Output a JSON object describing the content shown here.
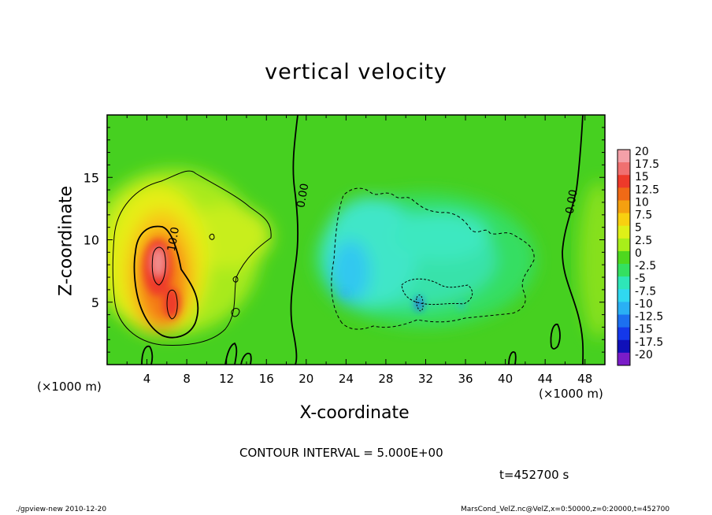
{
  "chart_data": {
    "type": "heatmap",
    "title": "vertical velocity",
    "xlabel": "X-coordinate",
    "ylabel": "Z-coordinate",
    "x_unit_left": "(×1000 m)",
    "x_unit_right": "(×1000 m)",
    "xlim": [
      0,
      50
    ],
    "ylim": [
      0,
      20
    ],
    "x_ticks": [
      4,
      8,
      12,
      16,
      20,
      24,
      28,
      32,
      36,
      40,
      44,
      48
    ],
    "y_ticks": [
      5,
      10,
      15
    ],
    "colorbar": {
      "labels": [
        "20",
        "17.5",
        "15",
        "12.5",
        "10",
        "7.5",
        "5",
        "2.5",
        "0",
        "-2.5",
        "-5",
        "-7.5",
        "-10",
        "-12.5",
        "-15",
        "-17.5",
        "-20"
      ],
      "colors": [
        "#f4a0a8",
        "#f07070",
        "#ee3a2a",
        "#f06a16",
        "#f5a010",
        "#f8d010",
        "#dff018",
        "#a8ee1a",
        "#4ed81e",
        "#34e060",
        "#2ee6b8",
        "#30d8f0",
        "#2ab0f4",
        "#1c70f0",
        "#1438ea",
        "#1010b8",
        "#7a1cc8"
      ]
    },
    "contour_labels": [
      {
        "text": "10.0",
        "x": 7.0,
        "z": 10.0
      },
      {
        "text": "0.00",
        "x": 20.0,
        "z": 13.5
      },
      {
        "text": "0.00",
        "x": 47.0,
        "z": 13.0
      }
    ],
    "contour_interval_text": "CONTOUR INTERVAL = 5.000E+00",
    "time_text": "t=452700 s"
  },
  "footer": {
    "left": "./gpview-new  2010-12-20",
    "right": "MarsCond_VelZ.nc@VelZ,x=0:50000,z=0:20000,t=452700"
  }
}
